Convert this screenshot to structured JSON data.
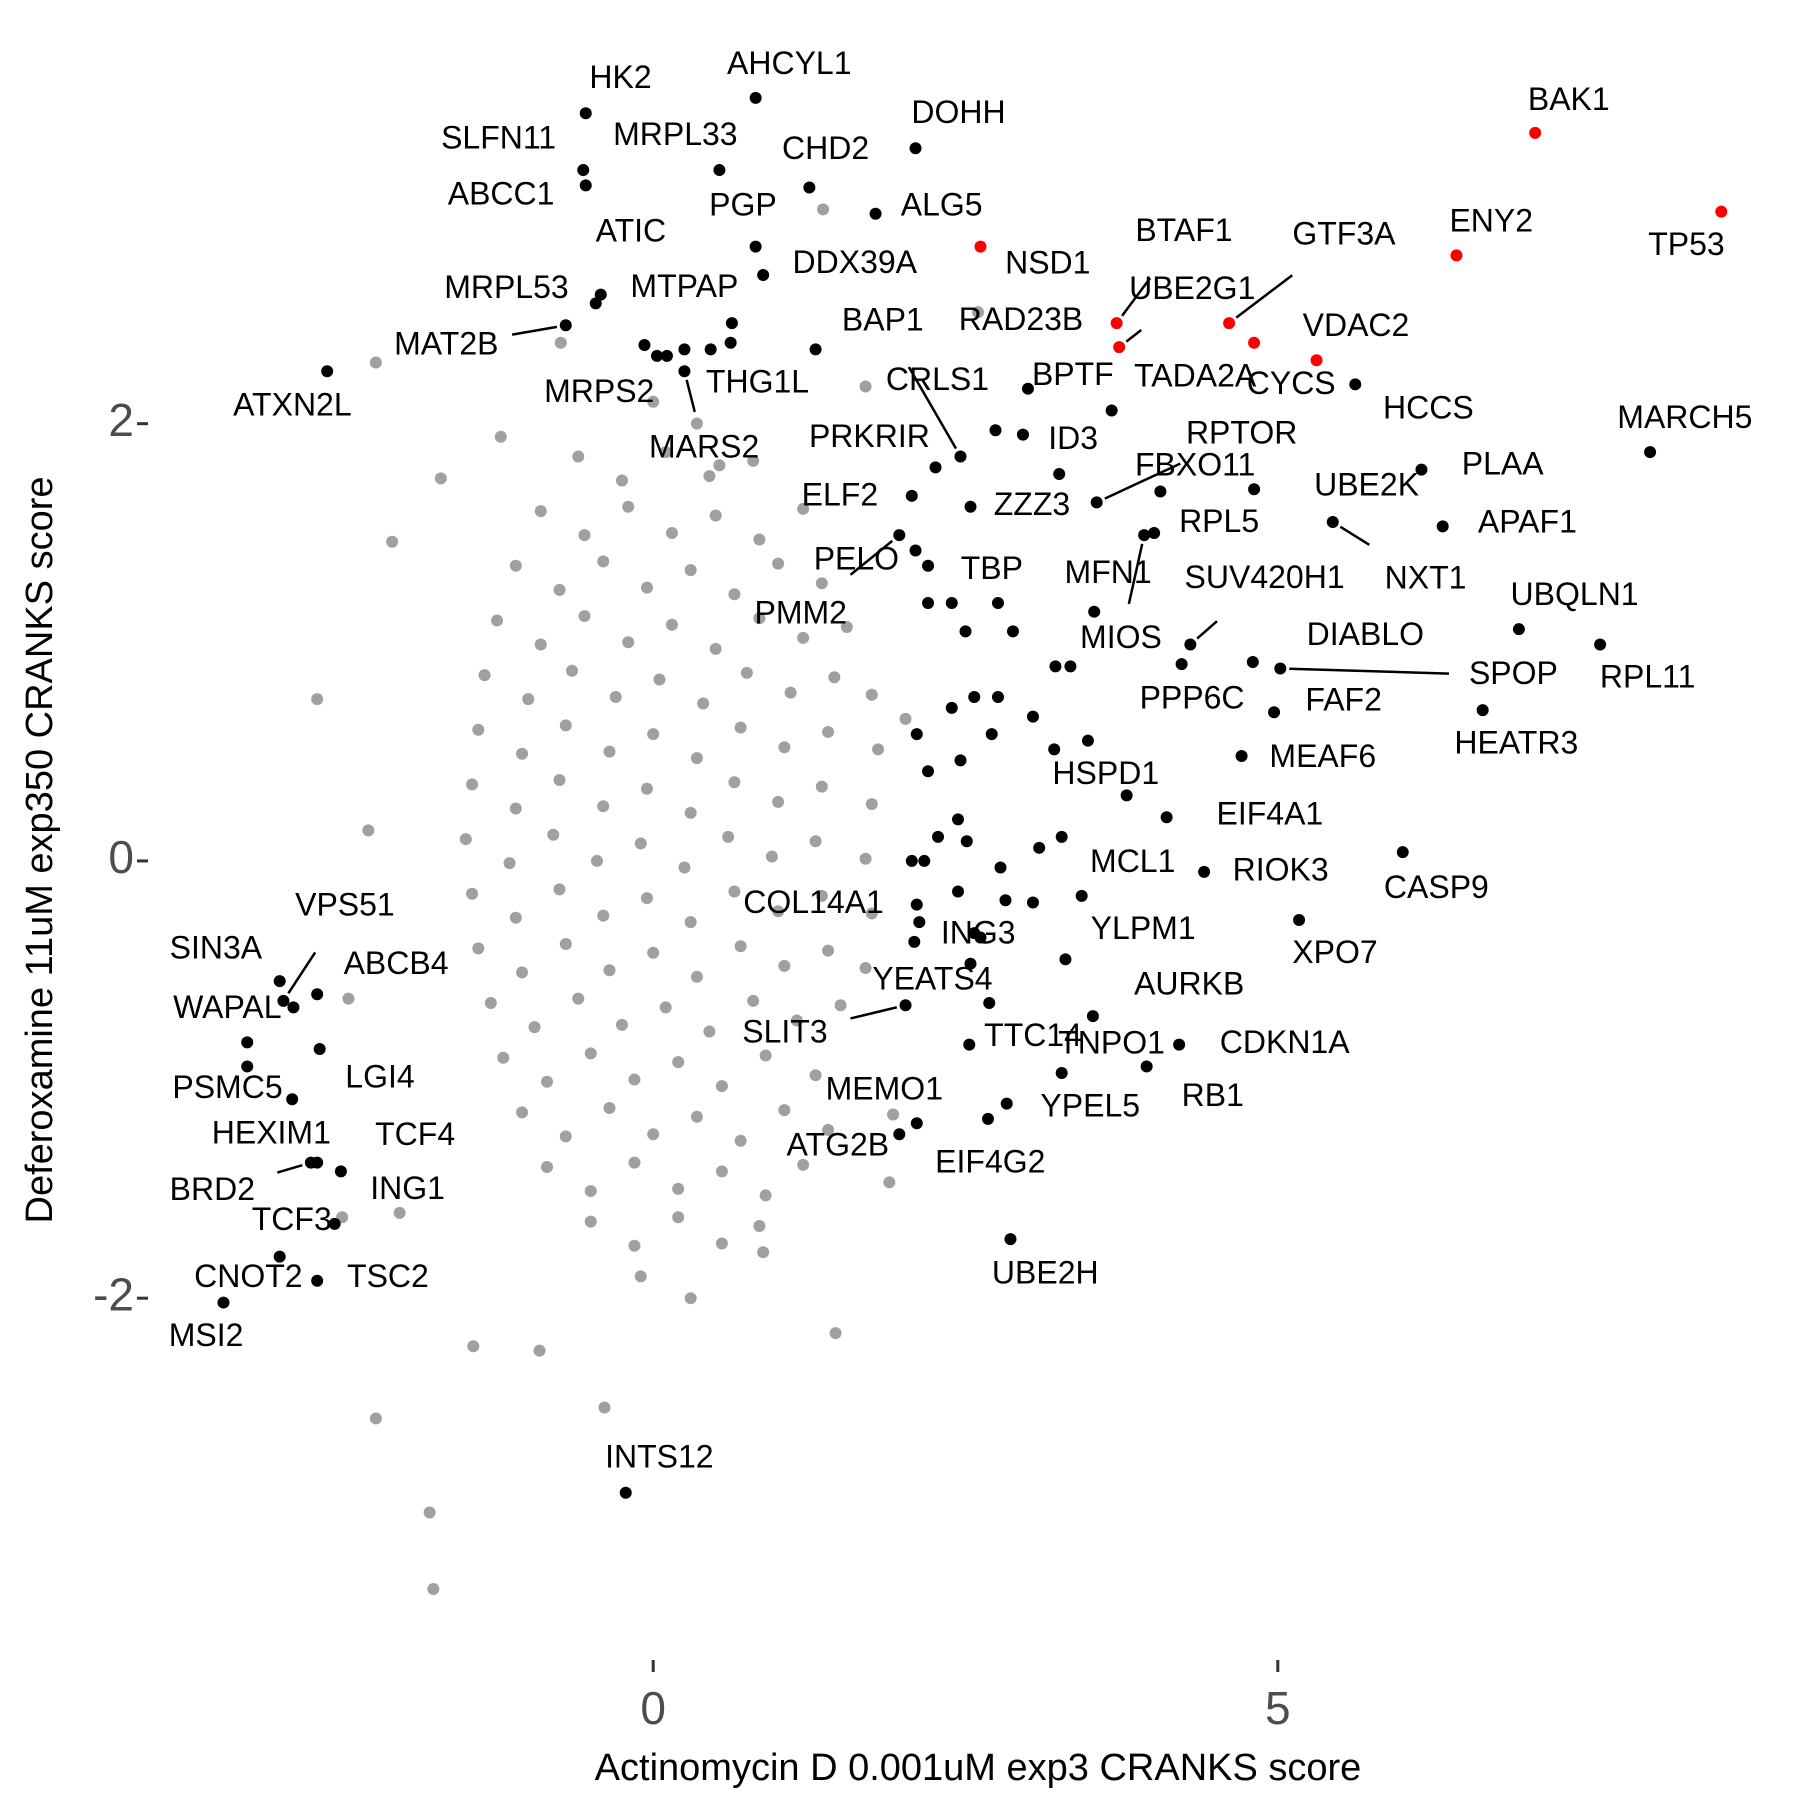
{
  "chart_data": {
    "type": "scatter",
    "xlabel": "Actinomycin D 0.001uM exp3 CRANKS score",
    "ylabel": "Deferoxamine 11uM exp350 CRANKS score",
    "xlim": [
      -3.7,
      8.9
    ],
    "ylim": [
      -3.6,
      3.7
    ],
    "xticks": [
      0,
      5
    ],
    "yticks": [
      -2,
      0,
      2
    ],
    "series": [
      {
        "color": "#a0a0a0",
        "x": [
          0.0,
          0.35,
          -0.6,
          -0.25,
          0.1,
          0.45,
          0.8,
          -0.9,
          -0.55,
          -0.2,
          0.15,
          0.5,
          0.85,
          1.2,
          -1.1,
          -0.75,
          -0.4,
          -0.05,
          0.3,
          0.65,
          1.0,
          1.35,
          -1.25,
          -0.9,
          -0.55,
          -0.2,
          0.15,
          0.5,
          0.85,
          1.2,
          1.55,
          -1.35,
          -1.0,
          -0.65,
          -0.3,
          0.05,
          0.4,
          0.75,
          1.1,
          1.45,
          1.75,
          -1.4,
          -1.05,
          -0.7,
          -0.35,
          0,
          0.35,
          0.7,
          1.05,
          1.4,
          1.8,
          -1.45,
          -1.1,
          -0.75,
          -0.4,
          -0.05,
          0.3,
          0.65,
          1.0,
          1.35,
          1.75,
          -1.5,
          -1.15,
          -0.8,
          -0.45,
          -0.1,
          0.25,
          0.6,
          0.95,
          1.3,
          1.7,
          -1.45,
          -1.1,
          -0.75,
          -0.4,
          -0.05,
          0.3,
          0.65,
          1.0,
          1.35,
          1.75,
          -1.4,
          -1.05,
          -0.7,
          -0.35,
          0,
          0.35,
          0.7,
          1.05,
          1.4,
          1.7,
          -1.3,
          -0.95,
          -0.6,
          -0.25,
          0.1,
          0.45,
          0.8,
          1.15,
          1.5,
          -1.2,
          -0.85,
          -0.5,
          -0.15,
          0.2,
          0.55,
          0.9,
          1.3,
          -1.05,
          -0.7,
          -0.35,
          0,
          0.35,
          0.7,
          1.05,
          1.4,
          -0.85,
          -0.5,
          -0.15,
          0.2,
          0.55,
          0.9,
          1.2,
          -0.5,
          -0.15,
          0.2,
          0.55,
          0.85,
          -0.1,
          0.3,
          -1.79,
          -1.76,
          -2.22,
          -2.69,
          -2.22,
          -0.74,
          1.36,
          2.6,
          -1.22,
          -2.09,
          1.89,
          0.88,
          -0.39,
          -2.49,
          -2.28,
          1.7,
          0.53,
          -1.7,
          -0.91,
          -1.44,
          1.92,
          2.02,
          -2.44,
          -2.03,
          1.46
        ],
        "values": [
          2.1,
          2.0,
          1.85,
          1.74,
          1.87,
          1.76,
          1.83,
          1.6,
          1.49,
          1.62,
          1.5,
          1.58,
          1.47,
          1.61,
          1.35,
          1.24,
          1.37,
          1.25,
          1.33,
          1.22,
          1.36,
          1.27,
          1.1,
          0.99,
          1.12,
          1.0,
          1.08,
          0.97,
          1.11,
          1.02,
          1.07,
          0.85,
          0.74,
          0.87,
          0.75,
          0.83,
          0.72,
          0.86,
          0.77,
          0.84,
          0.76,
          0.6,
          0.49,
          0.62,
          0.5,
          0.58,
          0.47,
          0.61,
          0.52,
          0.59,
          0.51,
          0.35,
          0.24,
          0.37,
          0.25,
          0.33,
          0.22,
          0.36,
          0.27,
          0.34,
          0.26,
          0.1,
          -0.01,
          0.12,
          0.0,
          0.08,
          -0.03,
          0.11,
          0.02,
          0.09,
          0.01,
          -0.15,
          -0.26,
          -0.13,
          -0.25,
          -0.17,
          -0.28,
          -0.14,
          -0.23,
          -0.16,
          -0.24,
          -0.4,
          -0.51,
          -0.38,
          -0.5,
          -0.42,
          -0.53,
          -0.39,
          -0.48,
          -0.41,
          -0.49,
          -0.65,
          -0.76,
          -0.63,
          -0.75,
          -0.67,
          -0.78,
          -0.64,
          -0.73,
          -0.66,
          -0.9,
          -1.01,
          -0.88,
          -1.0,
          -0.92,
          -1.03,
          -0.89,
          -0.98,
          -1.15,
          -1.26,
          -1.13,
          -1.25,
          -1.17,
          -1.28,
          -1.14,
          -1.23,
          -1.4,
          -1.51,
          -1.38,
          -1.5,
          -1.42,
          -1.53,
          -1.39,
          -1.65,
          -1.76,
          -1.63,
          -1.75,
          -1.67,
          -1.9,
          -2.0,
          -2.98,
          -3.33,
          -2.55,
          0.74,
          2.28,
          2.37,
          2.98,
          2.51,
          1.94,
          1.46,
          -1.47,
          -1.79,
          -2.5,
          -1.63,
          0.14,
          2.17,
          1.81,
          1.75,
          -2.24,
          -2.22,
          -1.16,
          0.65,
          -0.63,
          -1.61,
          -2.16
        ]
      },
      {
        "color": "#000000",
        "x": [
          1.3,
          0.03,
          0.11,
          0.46,
          0.62,
          2.2,
          2.39,
          2.76,
          2.88,
          2.5,
          3.22,
          3.34,
          2.39,
          2.57,
          2.76,
          2.71,
          3.04,
          3.21,
          3.48,
          2.11,
          2.46,
          2.2,
          2.44,
          2.51,
          2.28,
          2.07,
          2.17,
          2.44,
          2.78,
          2.82,
          3.04,
          3.09,
          3.27,
          2.13,
          2.57,
          2.09,
          2.54,
          -3.25
        ],
        "values": [
          2.34,
          2.31,
          2.31,
          2.34,
          2.37,
          1.18,
          1.18,
          1.18,
          1.05,
          1.05,
          0.89,
          0.89,
          0.7,
          0.75,
          0.75,
          0.58,
          0.66,
          0.51,
          0.55,
          0.58,
          0.46,
          0.41,
          0.19,
          0.09,
          0.11,
          0.0,
          0.0,
          -0.14,
          -0.03,
          -0.18,
          -0.19,
          0.06,
          0.11,
          -0.28,
          -0.33,
          -0.37,
          -0.47,
          -0.83
        ]
      },
      {
        "color": "#000000",
        "labels": [
          "HK2",
          "AHCYL1",
          "SLFN11",
          "MRPL33",
          "CHD2",
          "DOHH",
          "ABCC1",
          "PGP",
          "ALG5",
          "ATIC",
          "MRPL53",
          "DDX39A",
          "MTPAP",
          "MAT2B",
          "ATXN2L",
          "MRPS2",
          "THG1L",
          "MARS2",
          "BAP1",
          "RAD23B",
          "CRLS1",
          "BPTF",
          "TADA2A",
          "PRKRIR",
          "ID3",
          "ZZZ3",
          "ELF2",
          "RPTOR",
          "FBXO11",
          "UBE2K",
          "RPL5",
          "MFN1",
          "TBP",
          "PELO",
          "PMM2",
          "SUV420H1",
          "MIOS",
          "NXT1",
          "PLAA",
          "APAF1",
          "HCCS",
          "MARCH5",
          "UBQLN1",
          "RPL11",
          "DIABLO",
          "SPOP",
          "FAF2",
          "PPP6C",
          "HEATR3",
          "MEAF6",
          "HSPD1",
          "EIF4A1",
          "MCL1",
          "RIOK3",
          "CASP9",
          "COL14A1",
          "YLPM1",
          "ING3",
          "XPO7",
          "YEATS4",
          "AURKB",
          "SLIT3",
          "TTC14",
          "TNPO1",
          "CDKN1A",
          "RB1",
          "MEMO1",
          "YPEL5",
          "ATG2B",
          "EIF4G2",
          "UBE2H",
          "INTS12",
          "SIN3A",
          "VPS51",
          "ABCB4",
          "WAPAL",
          "PSMC5",
          "LGI4",
          "HEXIM1",
          "TCF4",
          "ING1",
          "BRD2",
          "TCF3",
          "CNOT2",
          "TSC2",
          "MSI2"
        ],
        "x": [
          -0.54,
          0.82,
          -0.56,
          0.53,
          1.25,
          2.1,
          -0.54,
          0.82,
          1.78,
          -0.42,
          -0.46,
          0.88,
          0.63,
          -0.7,
          -2.61,
          -0.07,
          0.25,
          0.25,
          2.46,
          3.0,
          2.74,
          2.96,
          3.67,
          2.26,
          3.25,
          2.54,
          2.07,
          3.55,
          4.06,
          4.81,
          4.01,
          3.53,
          2.2,
          2.1,
          1.97,
          4.3,
          3.93,
          5.44,
          6.15,
          6.32,
          5.62,
          7.98,
          6.93,
          7.58,
          4.8,
          5.02,
          4.97,
          4.23,
          6.64,
          4.71,
          3.79,
          4.11,
          3.43,
          4.41,
          6.0,
          2.11,
          3.3,
          2.62,
          5.17,
          2.69,
          3.52,
          2.02,
          2.53,
          3.27,
          4.21,
          3.95,
          2.11,
          2.83,
          1.97,
          2.68,
          2.86,
          -0.22,
          -2.99,
          -2.96,
          -2.69,
          -2.88,
          -3.25,
          -2.67,
          -2.89,
          -2.5,
          -2.69,
          -2.74,
          -2.55,
          -2.99,
          -2.69,
          -3.44
        ],
        "values": [
          3.42,
          3.49,
          3.16,
          3.16,
          3.08,
          3.26,
          3.09,
          2.81,
          2.96,
          2.59,
          2.55,
          2.68,
          2.46,
          2.45,
          2.24,
          2.36,
          2.34,
          2.24,
          1.85,
          2.16,
          1.97,
          1.95,
          2.06,
          1.8,
          1.77,
          1.62,
          1.67,
          1.64,
          1.69,
          1.7,
          1.5,
          1.14,
          1.35,
          1.42,
          1.49,
          0.99,
          1.49,
          1.55,
          1.79,
          1.53,
          2.18,
          1.87,
          1.06,
          0.99,
          0.91,
          0.88,
          0.68,
          0.9,
          0.69,
          0.48,
          0.3,
          0.2,
          -0.16,
          -0.05,
          0.04,
          -0.2,
          -0.45,
          -0.35,
          -0.27,
          -0.65,
          -0.71,
          -0.66,
          -0.84,
          -0.97,
          -0.84,
          -0.94,
          -1.2,
          -1.11,
          -1.25,
          -1.18,
          -1.73,
          -2.89,
          -0.55,
          -0.64,
          -0.61,
          -0.67,
          -0.94,
          -0.86,
          -1.09,
          -1.42,
          -1.38,
          -1.38,
          -1.66,
          -1.81,
          -1.92,
          -2.02
        ]
      },
      {
        "color": "#ff0000",
        "labels": [
          "BAK1",
          "TP53",
          "ENY2",
          "NSD1",
          "BTAF1",
          "UBE2G1",
          "GTF3A",
          "CYCS",
          "VDAC2"
        ],
        "x": [
          7.06,
          8.55,
          6.43,
          2.62,
          3.71,
          3.73,
          4.61,
          4.81,
          5.31
        ],
        "values": [
          3.33,
          2.97,
          2.77,
          2.81,
          2.46,
          2.35,
          2.46,
          2.37,
          2.29
        ]
      }
    ]
  }
}
